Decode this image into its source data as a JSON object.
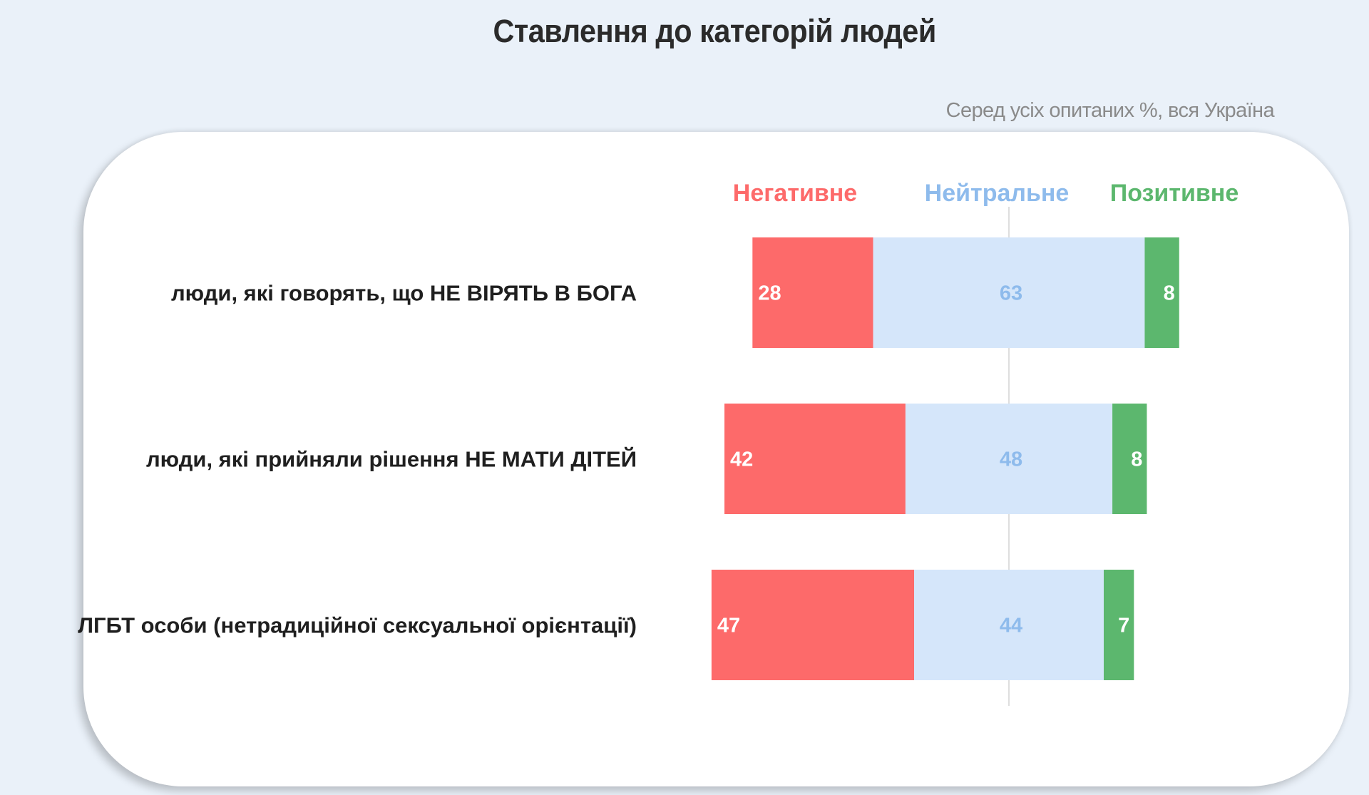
{
  "title": "Ставлення до категорій людей",
  "subtitle": "Серед усіх опитаних %, вся Україна",
  "colors": {
    "negative": "#fd6a6a",
    "neutral": "#d5e6fa",
    "positive": "#5cb76e",
    "neutral_label": "#8ebbec"
  },
  "chart_data": {
    "type": "bar",
    "orientation": "horizontal",
    "stacked": true,
    "diverging": true,
    "categories": [
      "люди, які говорять, що НЕ ВІРЯТЬ В БОГА",
      "люди, які прийняли рішення НЕ МАТИ ДІТЕЙ",
      "ЛГБТ особи (нетрадиційної сексуальної орієнтації)"
    ],
    "series": [
      {
        "name": "Негативне",
        "values": [
          28,
          42,
          47
        ]
      },
      {
        "name": "Нейтральне",
        "values": [
          63,
          48,
          44
        ]
      },
      {
        "name": "Позитивне",
        "values": [
          8,
          8,
          7
        ]
      }
    ],
    "center_line": "midpoint of Нейтральне",
    "legend_position": "top",
    "grid": false
  }
}
